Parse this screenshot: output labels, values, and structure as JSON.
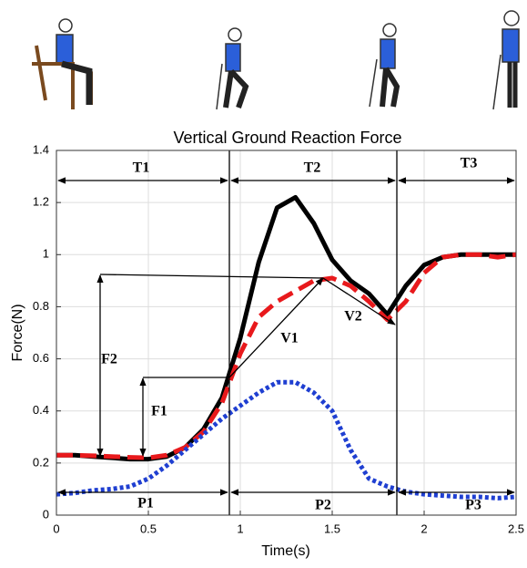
{
  "chart_data": {
    "type": "line",
    "title": "Vertical Ground Reaction Force",
    "xlabel": "Time(s)",
    "ylabel": "Force(N)",
    "x": [
      0,
      0.1,
      0.2,
      0.3,
      0.4,
      0.5,
      0.6,
      0.7,
      0.8,
      0.9,
      1.0,
      1.1,
      1.2,
      1.3,
      1.4,
      1.5,
      1.6,
      1.7,
      1.8,
      1.9,
      2.0,
      2.1,
      2.2,
      2.3,
      2.4,
      2.5
    ],
    "series": [
      {
        "color": "#000000",
        "style": "solid",
        "values": [
          0.23,
          0.23,
          0.225,
          0.22,
          0.215,
          0.215,
          0.225,
          0.26,
          0.33,
          0.45,
          0.68,
          0.97,
          1.18,
          1.22,
          1.12,
          0.98,
          0.9,
          0.85,
          0.77,
          0.88,
          0.96,
          0.99,
          1.0,
          1.0,
          1.0,
          1.0
        ]
      },
      {
        "color": "#e8191c",
        "style": "dashed",
        "values": [
          0.23,
          0.23,
          0.228,
          0.225,
          0.222,
          0.22,
          0.23,
          0.26,
          0.32,
          0.43,
          0.62,
          0.76,
          0.82,
          0.86,
          0.9,
          0.91,
          0.88,
          0.82,
          0.75,
          0.82,
          0.93,
          0.99,
          1.0,
          1.0,
          0.99,
          1.0
        ]
      },
      {
        "color": "#1f3fd1",
        "style": "dotted",
        "values": [
          0.08,
          0.085,
          0.095,
          0.1,
          0.11,
          0.14,
          0.19,
          0.25,
          0.31,
          0.37,
          0.42,
          0.47,
          0.51,
          0.51,
          0.47,
          0.4,
          0.25,
          0.14,
          0.11,
          0.09,
          0.08,
          0.075,
          0.07,
          0.07,
          0.065,
          0.07
        ]
      }
    ],
    "xlim": [
      0,
      2.5
    ],
    "xticks": [
      0,
      0.5,
      1,
      1.5,
      2,
      2.5
    ],
    "ylim": [
      0,
      1.4
    ],
    "yticks": [
      0,
      0.2,
      0.4,
      0.6,
      0.8,
      1,
      1.2,
      1.4
    ],
    "grid": true,
    "annotations": [
      "T1",
      "T2",
      "T3",
      "P1",
      "P2",
      "P3",
      "F1",
      "F2",
      "V1",
      "V2"
    ]
  }
}
